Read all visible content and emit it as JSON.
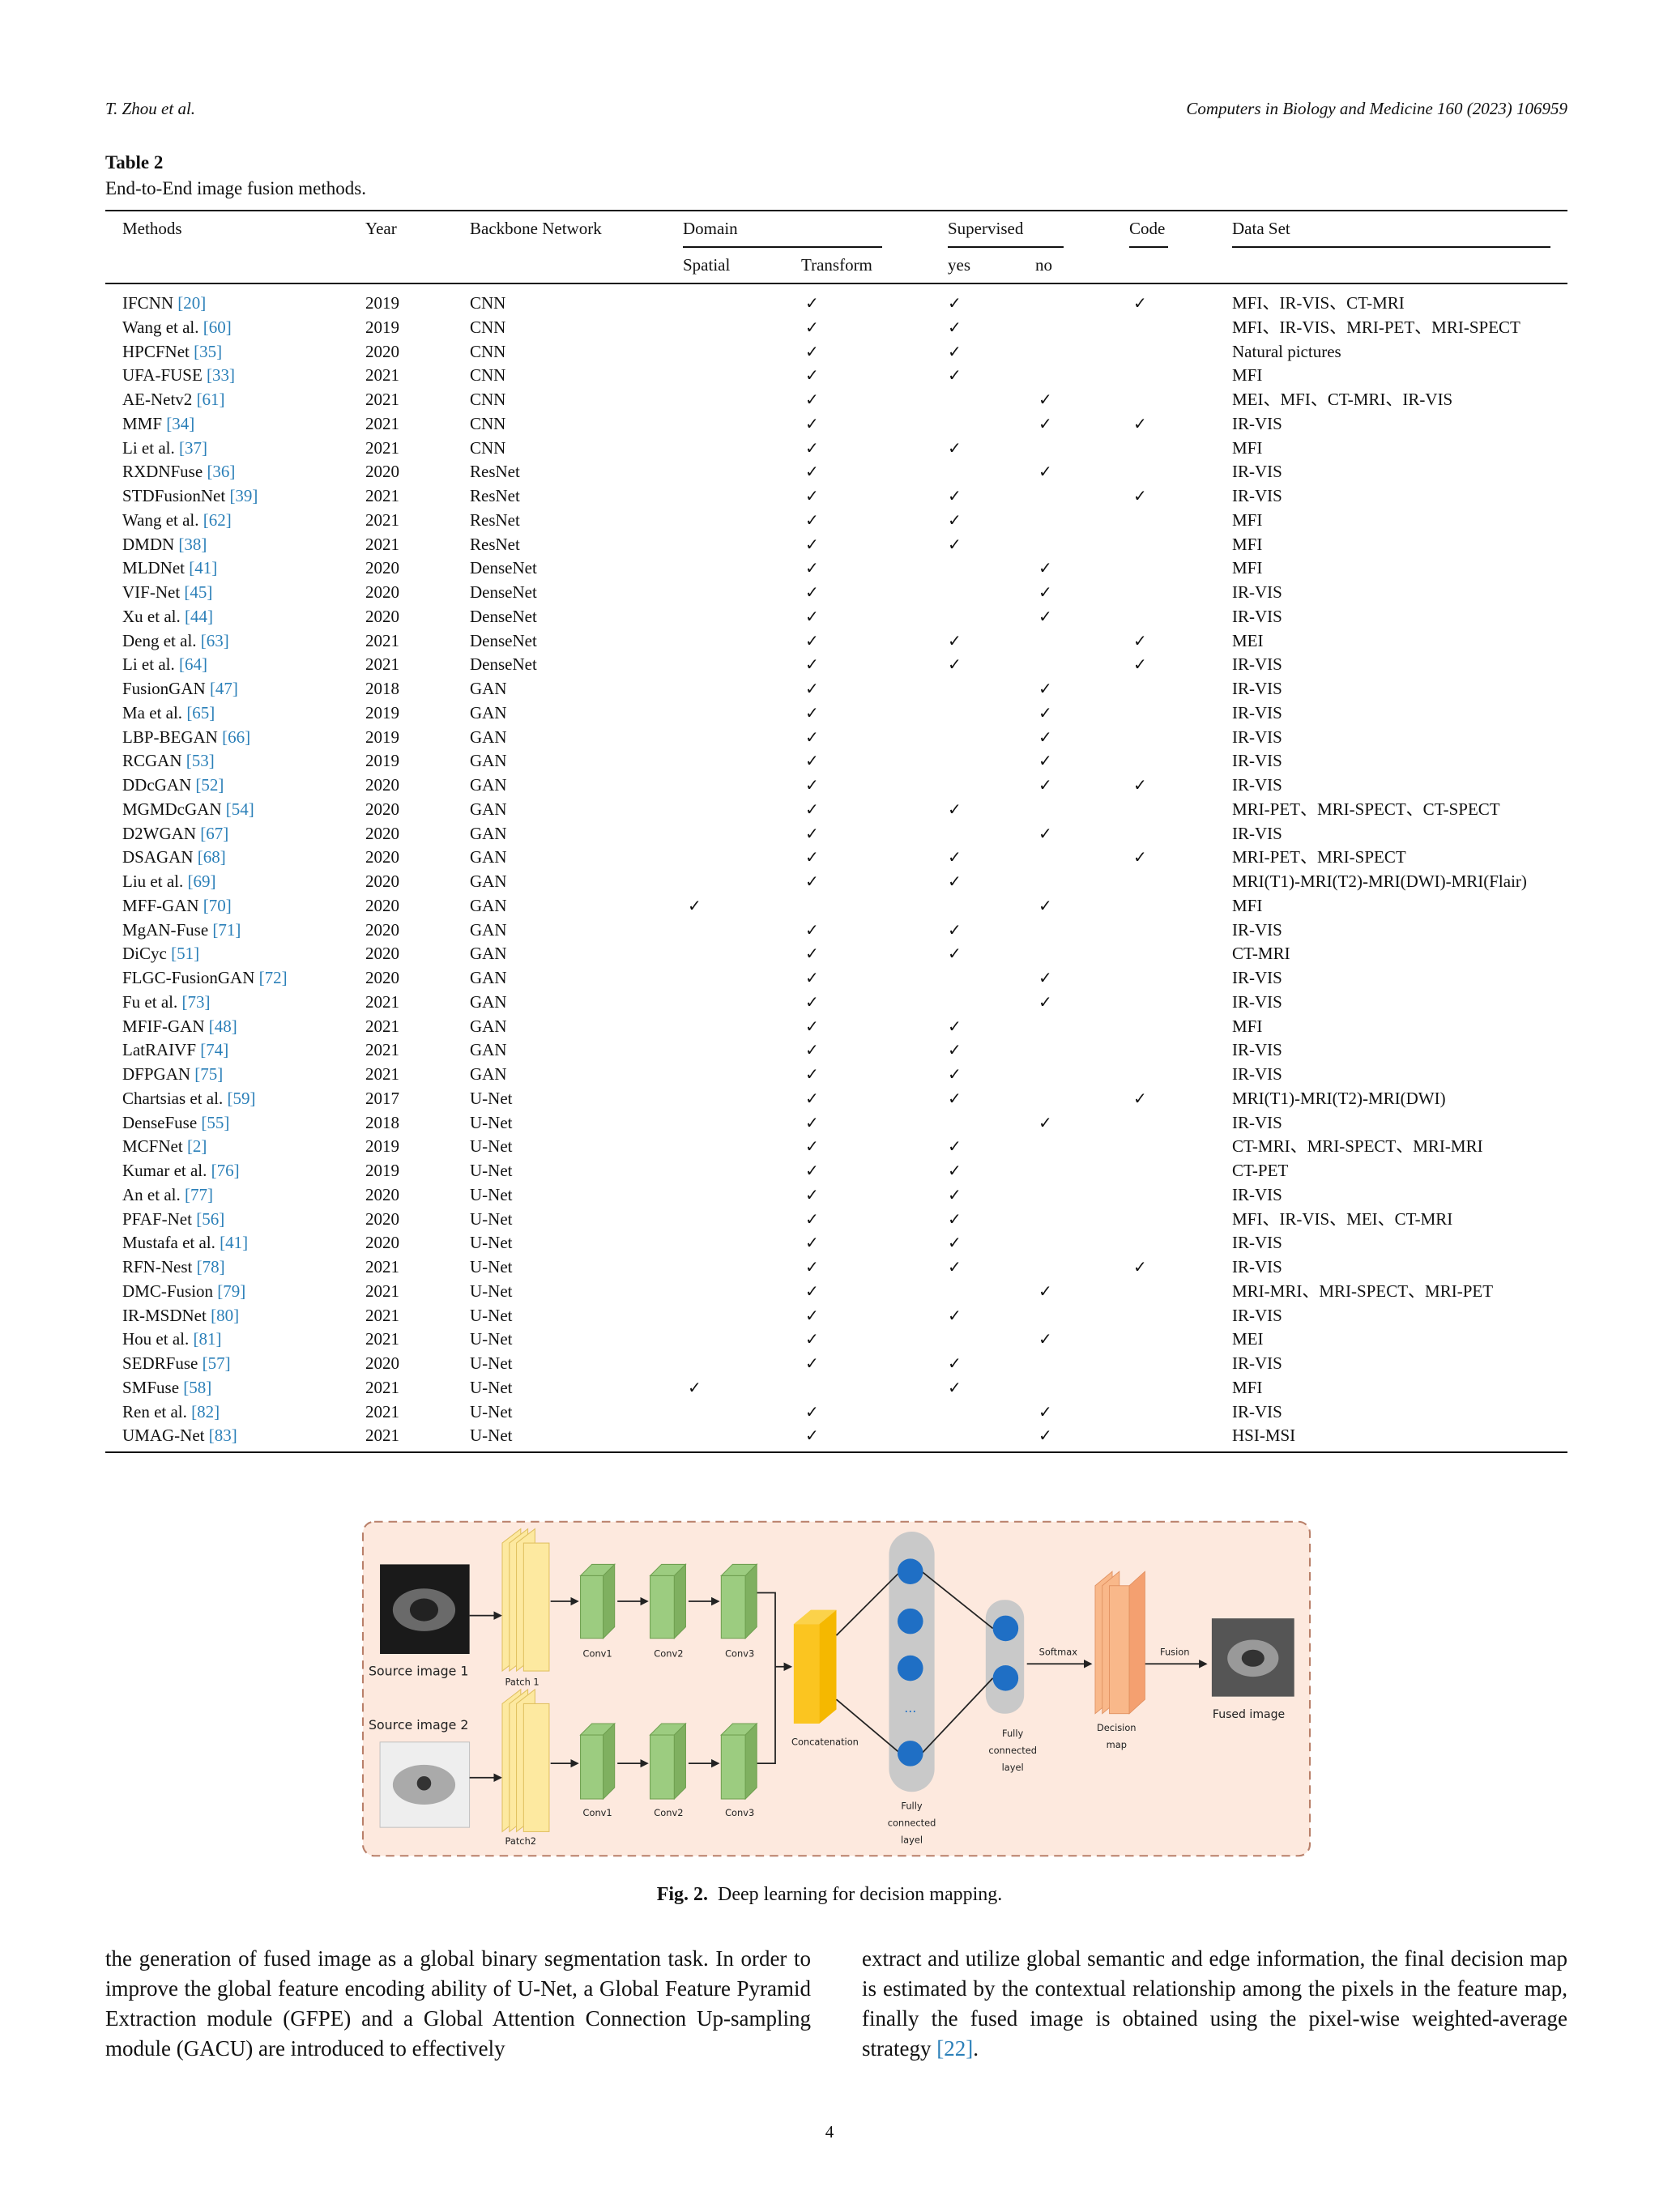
{
  "header": {
    "left": "T. Zhou et al.",
    "right": "Computers in Biology and Medicine 160 (2023) 106959"
  },
  "table": {
    "label": "Table 2",
    "caption": "End-to-End image fusion methods.",
    "columns": [
      "Methods",
      "Year",
      "Backbone Network",
      "Domain",
      "Supervised",
      "Code",
      "Data Set"
    ],
    "subcolumns": [
      "Spatial",
      "Transform",
      "yes",
      "no"
    ],
    "rows": [
      [
        "IFCNN",
        "[20]",
        2019,
        "CNN",
        null,
        "✓",
        "✓",
        null,
        "✓",
        "MFI、IR-VIS、CT-MRI"
      ],
      [
        "Wang et al.",
        "[60]",
        2019,
        "CNN",
        null,
        "✓",
        "✓",
        null,
        null,
        "MFI、IR-VIS、MRI-PET、MRI-SPECT"
      ],
      [
        "HPCFNet",
        "[35]",
        2020,
        "CNN",
        null,
        "✓",
        "✓",
        null,
        null,
        "Natural pictures"
      ],
      [
        "UFA-FUSE",
        "[33]",
        2021,
        "CNN",
        null,
        "✓",
        "✓",
        null,
        null,
        "MFI"
      ],
      [
        "AE-Netv2",
        "[61]",
        2021,
        "CNN",
        null,
        "✓",
        null,
        "✓",
        null,
        "MEI、MFI、CT-MRI、IR-VIS"
      ],
      [
        "MMF",
        "[34]",
        2021,
        "CNN",
        null,
        "✓",
        null,
        "✓",
        "✓",
        "IR-VIS"
      ],
      [
        "Li et al.",
        "[37]",
        2021,
        "CNN",
        null,
        "✓",
        "✓",
        null,
        null,
        "MFI"
      ],
      [
        "RXDNFuse",
        "[36]",
        2020,
        "ResNet",
        null,
        "✓",
        null,
        "✓",
        null,
        "IR-VIS"
      ],
      [
        "STDFusionNet",
        "[39]",
        2021,
        "ResNet",
        null,
        "✓",
        "✓",
        null,
        "✓",
        "IR-VIS"
      ],
      [
        "Wang et al.",
        "[62]",
        2021,
        "ResNet",
        null,
        "✓",
        "✓",
        null,
        null,
        "MFI"
      ],
      [
        "DMDN",
        "[38]",
        2021,
        "ResNet",
        null,
        "✓",
        "✓",
        null,
        null,
        "MFI"
      ],
      [
        "MLDNet",
        "[41]",
        2020,
        "DenseNet",
        null,
        "✓",
        null,
        "✓",
        null,
        "MFI"
      ],
      [
        "VIF-Net",
        "[45]",
        2020,
        "DenseNet",
        null,
        "✓",
        null,
        "✓",
        null,
        "IR-VIS"
      ],
      [
        "Xu et al.",
        "[44]",
        2020,
        "DenseNet",
        null,
        "✓",
        null,
        "✓",
        null,
        "IR-VIS"
      ],
      [
        "Deng et al.",
        "[63]",
        2021,
        "DenseNet",
        null,
        "✓",
        "✓",
        null,
        "✓",
        "MEI"
      ],
      [
        "Li et al.",
        "[64]",
        2021,
        "DenseNet",
        null,
        "✓",
        "✓",
        null,
        "✓",
        "IR-VIS"
      ],
      [
        "FusionGAN",
        "[47]",
        2018,
        "GAN",
        null,
        "✓",
        null,
        "✓",
        null,
        "IR-VIS"
      ],
      [
        "Ma et al.",
        "[65]",
        2019,
        "GAN",
        null,
        "✓",
        null,
        "✓",
        null,
        "IR-VIS"
      ],
      [
        "LBP-BEGAN",
        "[66]",
        2019,
        "GAN",
        null,
        "✓",
        null,
        "✓",
        null,
        "IR-VIS"
      ],
      [
        "RCGAN",
        "[53]",
        2019,
        "GAN",
        null,
        "✓",
        null,
        "✓",
        null,
        "IR-VIS"
      ],
      [
        "DDcGAN",
        "[52]",
        2020,
        "GAN",
        null,
        "✓",
        null,
        "✓",
        "✓",
        "IR-VIS"
      ],
      [
        "MGMDcGAN",
        "[54]",
        2020,
        "GAN",
        null,
        "✓",
        "✓",
        null,
        null,
        "MRI-PET、MRI-SPECT、CT-SPECT"
      ],
      [
        "D2WGAN",
        "[67]",
        2020,
        "GAN",
        null,
        "✓",
        null,
        "✓",
        null,
        "IR-VIS"
      ],
      [
        "DSAGAN",
        "[68]",
        2020,
        "GAN",
        null,
        "✓",
        "✓",
        null,
        "✓",
        "MRI-PET、MRI-SPECT"
      ],
      [
        "Liu et al.",
        "[69]",
        2020,
        "GAN",
        null,
        "✓",
        "✓",
        null,
        null,
        "MRI(T1)-MRI(T2)-MRI(DWI)-MRI(Flair)"
      ],
      [
        "MFF-GAN",
        "[70]",
        2020,
        "GAN",
        "✓",
        null,
        null,
        "✓",
        null,
        "MFI"
      ],
      [
        "MgAN-Fuse",
        "[71]",
        2020,
        "GAN",
        null,
        "✓",
        "✓",
        null,
        null,
        "IR-VIS"
      ],
      [
        "DiCyc",
        "[51]",
        2020,
        "GAN",
        null,
        "✓",
        "✓",
        null,
        null,
        "CT-MRI"
      ],
      [
        "FLGC-FusionGAN",
        "[72]",
        2020,
        "GAN",
        null,
        "✓",
        null,
        "✓",
        null,
        "IR-VIS"
      ],
      [
        "Fu et al.",
        "[73]",
        2021,
        "GAN",
        null,
        "✓",
        null,
        "✓",
        null,
        "IR-VIS"
      ],
      [
        "MFIF-GAN",
        "[48]",
        2021,
        "GAN",
        null,
        "✓",
        "✓",
        null,
        null,
        "MFI"
      ],
      [
        "LatRAIVF",
        "[74]",
        2021,
        "GAN",
        null,
        "✓",
        "✓",
        null,
        null,
        "IR-VIS"
      ],
      [
        "DFPGAN",
        "[75]",
        2021,
        "GAN",
        null,
        "✓",
        "✓",
        null,
        null,
        "IR-VIS"
      ],
      [
        "Chartsias et al.",
        "[59]",
        2017,
        "U-Net",
        null,
        "✓",
        "✓",
        null,
        "✓",
        "MRI(T1)-MRI(T2)-MRI(DWI)"
      ],
      [
        "DenseFuse",
        "[55]",
        2018,
        "U-Net",
        null,
        "✓",
        null,
        "✓",
        null,
        "IR-VIS"
      ],
      [
        "MCFNet",
        "[2]",
        2019,
        "U-Net",
        null,
        "✓",
        "✓",
        null,
        null,
        "CT-MRI、MRI-SPECT、MRI-MRI"
      ],
      [
        "Kumar et al.",
        "[76]",
        2019,
        "U-Net",
        null,
        "✓",
        "✓",
        null,
        null,
        "CT-PET"
      ],
      [
        "An et al.",
        "[77]",
        2020,
        "U-Net",
        null,
        "✓",
        "✓",
        null,
        null,
        "IR-VIS"
      ],
      [
        "PFAF-Net",
        "[56]",
        2020,
        "U-Net",
        null,
        "✓",
        "✓",
        null,
        null,
        "MFI、IR-VIS、MEI、CT-MRI"
      ],
      [
        "Mustafa et al.",
        "[41]",
        2020,
        "U-Net",
        null,
        "✓",
        "✓",
        null,
        null,
        "IR-VIS"
      ],
      [
        "RFN-Nest",
        "[78]",
        2021,
        "U-Net",
        null,
        "✓",
        "✓",
        null,
        "✓",
        "IR-VIS"
      ],
      [
        "DMC-Fusion",
        "[79]",
        2021,
        "U-Net",
        null,
        "✓",
        null,
        "✓",
        null,
        "MRI-MRI、MRI-SPECT、MRI-PET"
      ],
      [
        "IR-MSDNet",
        "[80]",
        2021,
        "U-Net",
        null,
        "✓",
        "✓",
        null,
        null,
        "IR-VIS"
      ],
      [
        "Hou et al.",
        "[81]",
        2021,
        "U-Net",
        null,
        "✓",
        null,
        "✓",
        null,
        "MEI"
      ],
      [
        "SEDRFuse",
        "[57]",
        2020,
        "U-Net",
        null,
        "✓",
        "✓",
        null,
        null,
        "IR-VIS"
      ],
      [
        "SMFuse",
        "[58]",
        2021,
        "U-Net",
        "✓",
        null,
        "✓",
        null,
        null,
        "MFI"
      ],
      [
        "Ren et al.",
        "[82]",
        2021,
        "U-Net",
        null,
        "✓",
        null,
        "✓",
        null,
        "IR-VIS"
      ],
      [
        "UMAG-Net",
        "[83]",
        2021,
        "U-Net",
        null,
        "✓",
        null,
        "✓",
        null,
        "HSI-MSI"
      ]
    ]
  },
  "figure": {
    "source1": "Source image 1",
    "source2": "Source image 2",
    "patch1": "Patch 1",
    "patch2": "Patch2",
    "conv1": "Conv1",
    "conv2": "Conv2",
    "conv3": "Conv3",
    "concatenation": "Concatenation",
    "fc_big": [
      "Fully",
      "connected",
      "layel"
    ],
    "fc_small": [
      "Fully",
      "connected",
      "layel"
    ],
    "softmax": "Softmax",
    "decision": [
      "Decision",
      "map"
    ],
    "fusion": "Fusion",
    "fused": "Fused image",
    "dots": "..."
  },
  "caption": {
    "label": "Fig. 2.",
    "text": "Deep learning for decision mapping."
  },
  "body": {
    "left": "the generation of fused image as a global binary segmentation task. In order to improve the global feature encoding ability of U-Net, a Global Feature Pyramid Extraction module (GFPE) and a Global Attention Connection Up-sampling module (GACU) are introduced to effectively",
    "right": {
      "text": "extract and utilize global semantic and edge information, the final decision map is estimated by the contextual relationship among the pixels in the feature map, finally the fused image is obtained using the pixel-wise weighted-average strategy ",
      "ref": "[22]",
      "end": "."
    }
  },
  "page_number": 4
}
